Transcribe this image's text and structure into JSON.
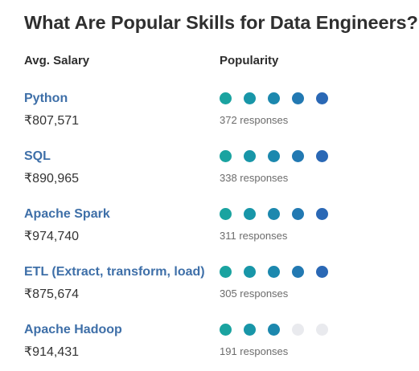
{
  "title": "What Are Popular Skills for Data Engineers?",
  "headers": {
    "salary": "Avg. Salary",
    "popularity": "Popularity"
  },
  "colors": {
    "skill_link": "#3e6fa8",
    "dot_empty": "#e9eaee",
    "dot_scale": [
      "#1aa3a0",
      "#1896a8",
      "#1c88ae",
      "#2279b2",
      "#2a68b5"
    ]
  },
  "skills": [
    {
      "name": "Python",
      "salary": "₹807,571",
      "responses": "372 responses",
      "rating": 5
    },
    {
      "name": "SQL",
      "salary": "₹890,965",
      "responses": "338 responses",
      "rating": 5
    },
    {
      "name": "Apache Spark",
      "salary": "₹974,740",
      "responses": "311 responses",
      "rating": 5
    },
    {
      "name": "ETL (Extract, transform, load)",
      "salary": "₹875,674",
      "responses": "305 responses",
      "rating": 5
    },
    {
      "name": "Apache Hadoop",
      "salary": "₹914,431",
      "responses": "191 responses",
      "rating": 3
    }
  ]
}
